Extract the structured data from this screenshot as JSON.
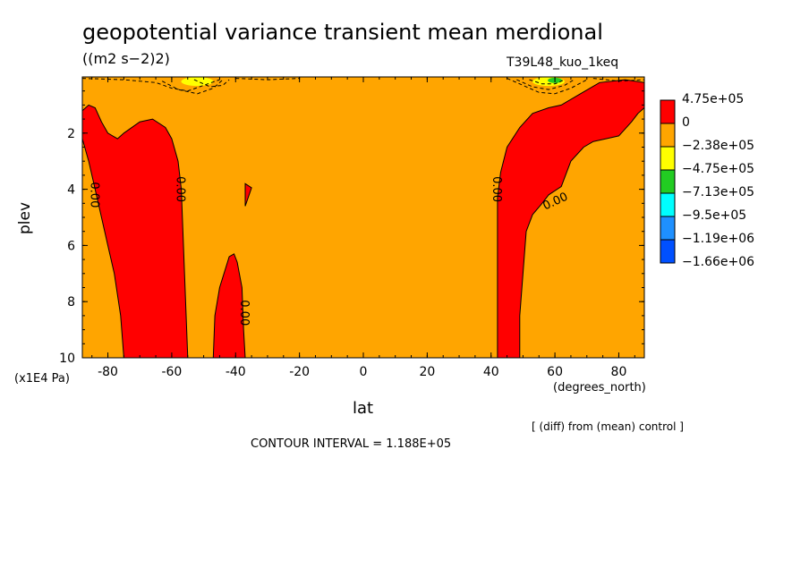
{
  "title": "geopotential variance transient mean merdional",
  "subtitle": "((m2 s−2)2)",
  "run_label": "T39L48_kuo_1keq",
  "y_unit_label": "(x1E4 Pa)",
  "x_unit_label": "(degrees_north)",
  "note": "[ (diff) from (mean) control ]",
  "contour_interval": "CONTOUR INTERVAL = 1.188E+05",
  "chart_data": {
    "type": "contour",
    "xlabel": "lat",
    "ylabel": "plev",
    "xlim": [
      -88,
      88
    ],
    "ylim": [
      10,
      0
    ],
    "x_ticks": [
      "-80",
      "-60",
      "-40",
      "-20",
      "0",
      "20",
      "40",
      "60",
      "80"
    ],
    "x_tick_values": [
      -80,
      -60,
      -40,
      -20,
      0,
      20,
      40,
      60,
      80
    ],
    "y_ticks": [
      "2",
      "4",
      "6",
      "8",
      "10"
    ],
    "y_tick_values": [
      2,
      4,
      6,
      8,
      10
    ],
    "contour_labels": [
      {
        "text": "0.00",
        "lat": -84,
        "plev": 4.2
      },
      {
        "text": "0.00",
        "lat": -57,
        "plev": 4.0
      },
      {
        "text": "0.00",
        "lat": -37,
        "plev": 8.4
      },
      {
        "text": "0.00",
        "lat": 42,
        "plev": 4.0
      },
      {
        "text": "0.00",
        "lat": 60,
        "plev": 4.4
      }
    ],
    "colorbar": {
      "labels": [
        "4.75e+05",
        "0",
        "−2.38e+05",
        "−4.75e+05",
        "−7.13e+05",
        "−9.5e+05",
        "−1.19e+06",
        "−1.66e+06"
      ],
      "colors": [
        "#ff0000",
        "#ffa500",
        "#ffff00",
        "#22cc22",
        "#00ffff",
        "#1e90ff",
        "#0050ff"
      ]
    },
    "regions": [
      {
        "name": "positive-left",
        "color": "#ff0000",
        "points": [
          [
            -88,
            1.2
          ],
          [
            -86,
            1.0
          ],
          [
            -84,
            1.1
          ],
          [
            -82,
            1.6
          ],
          [
            -80,
            2.0
          ],
          [
            -77,
            2.2
          ],
          [
            -75,
            2.0
          ],
          [
            -70,
            1.6
          ],
          [
            -66,
            1.5
          ],
          [
            -62,
            1.8
          ],
          [
            -60,
            2.2
          ],
          [
            -58,
            3.0
          ],
          [
            -57,
            4.0
          ],
          [
            -56.5,
            5.5
          ],
          [
            -56,
            7.0
          ],
          [
            -55.5,
            8.5
          ],
          [
            -55,
            10
          ],
          [
            -75,
            10
          ],
          [
            -76,
            8.5
          ],
          [
            -78,
            7.0
          ],
          [
            -80,
            6.0
          ],
          [
            -82,
            5.0
          ],
          [
            -84,
            4.0
          ],
          [
            -86,
            3.0
          ],
          [
            -88,
            2.2
          ]
        ]
      },
      {
        "name": "positive-mid",
        "color": "#ff0000",
        "points": [
          [
            -47,
            10
          ],
          [
            -46.5,
            8.5
          ],
          [
            -45,
            7.5
          ],
          [
            -42,
            6.4
          ],
          [
            -40.5,
            6.3
          ],
          [
            -39.5,
            6.6
          ],
          [
            -38,
            7.5
          ],
          [
            -37.5,
            9.0
          ],
          [
            -37,
            10
          ]
        ]
      },
      {
        "name": "positive-triangle",
        "color": "#ff0000",
        "points": [
          [
            -37,
            3.8
          ],
          [
            -35,
            3.95
          ],
          [
            -37,
            4.6
          ]
        ]
      },
      {
        "name": "positive-right",
        "color": "#ff0000",
        "points": [
          [
            42,
            10
          ],
          [
            42,
            8.0
          ],
          [
            42,
            6.0
          ],
          [
            42,
            4.3
          ],
          [
            43,
            3.4
          ],
          [
            45,
            2.5
          ],
          [
            49,
            1.8
          ],
          [
            53,
            1.3
          ],
          [
            58,
            1.1
          ],
          [
            62,
            1.0
          ],
          [
            68,
            0.6
          ],
          [
            74,
            0.2
          ],
          [
            82,
            0.1
          ],
          [
            88,
            0.2
          ],
          [
            88,
            1.1
          ],
          [
            86,
            1.3
          ],
          [
            84,
            1.6
          ],
          [
            80,
            2.1
          ],
          [
            76,
            2.2
          ],
          [
            72,
            2.3
          ],
          [
            69,
            2.5
          ],
          [
            65,
            3.0
          ],
          [
            62,
            3.9
          ],
          [
            58,
            4.2
          ],
          [
            56,
            4.5
          ],
          [
            53,
            4.9
          ],
          [
            51,
            5.5
          ],
          [
            50,
            7.0
          ],
          [
            49,
            8.5
          ],
          [
            49,
            10
          ]
        ]
      }
    ],
    "dashed_contours": [
      [
        [
          -88,
          0.05
        ],
        [
          -75,
          0.1
        ],
        [
          -65,
          0.2
        ],
        [
          -60,
          0.4
        ],
        [
          -55,
          0.5
        ],
        [
          -50,
          0.3
        ],
        [
          -45,
          0.1
        ]
      ],
      [
        [
          -63,
          0.15
        ],
        [
          -58,
          0.45
        ],
        [
          -52,
          0.6
        ],
        [
          -47,
          0.4
        ],
        [
          -44,
          0.1
        ]
      ],
      [
        [
          -53,
          0.1
        ],
        [
          -48,
          0.35
        ],
        [
          -44,
          0.3
        ],
        [
          -42,
          0.1
        ]
      ],
      [
        [
          -40,
          0.05
        ],
        [
          -30,
          0.1
        ],
        [
          -20,
          0.05
        ]
      ],
      [
        [
          45,
          0.05
        ],
        [
          50,
          0.3
        ],
        [
          55,
          0.55
        ],
        [
          60,
          0.6
        ],
        [
          65,
          0.4
        ],
        [
          70,
          0.1
        ]
      ],
      [
        [
          48,
          0.1
        ],
        [
          53,
          0.35
        ],
        [
          58,
          0.45
        ],
        [
          63,
          0.3
        ],
        [
          66,
          0.1
        ]
      ],
      [
        [
          52,
          0.1
        ],
        [
          56,
          0.25
        ],
        [
          60,
          0.25
        ],
        [
          63,
          0.1
        ]
      ],
      [
        [
          72,
          0.05
        ],
        [
          80,
          0.15
        ],
        [
          88,
          0.1
        ]
      ]
    ],
    "negative_blobs": [
      {
        "lat": -52,
        "plev": 0.1,
        "color": "#ffff00"
      },
      {
        "lat": 58,
        "plev": 0.1,
        "color": "#ffff00"
      },
      {
        "lat": 60,
        "plev": 0.06,
        "color": "#22cc22"
      }
    ]
  }
}
